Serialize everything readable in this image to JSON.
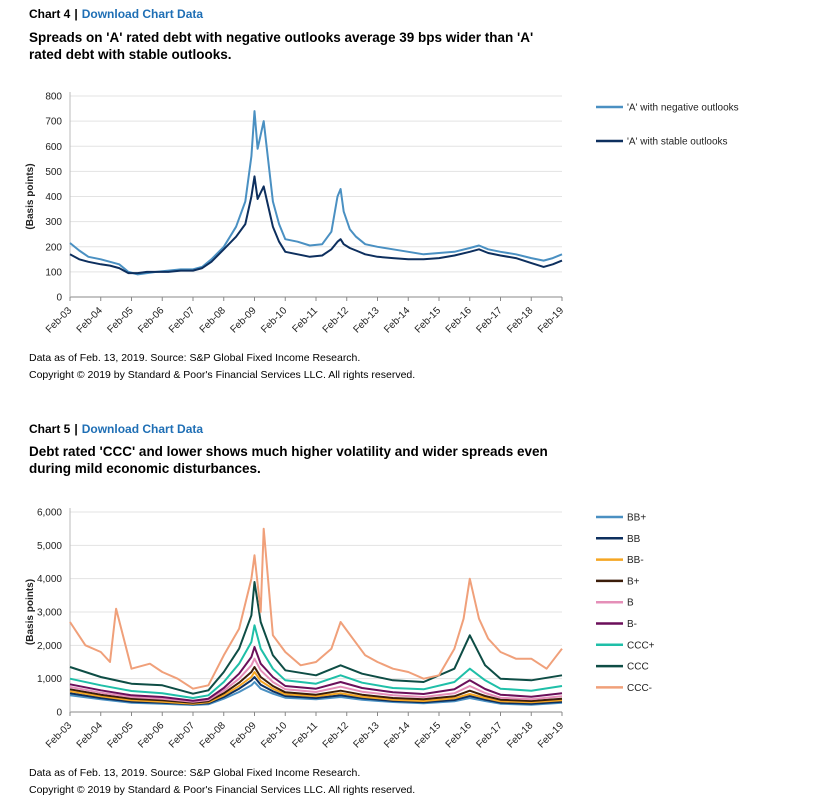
{
  "charts": [
    {
      "label": "Chart 4",
      "separator": "|",
      "download_label": "Download Chart Data",
      "title": "Spreads on 'A' rated debt with negative outlooks average 39 bps wider than 'A' rated debt with stable outlooks.",
      "note": "Data as of Feb. 13, 2019. Source: S&P Global Fixed Income Research.",
      "copyright": "Copyright © 2019 by Standard & Poor's Financial Services LLC. All rights reserved."
    },
    {
      "label": "Chart 5",
      "separator": "|",
      "download_label": "Download Chart Data",
      "title": "Debt rated 'CCC' and lower shows much higher volatility and wider spreads even during mild economic disturbances.",
      "note": "Data as of Feb. 13, 2019. Source: S&P Global Fixed Income Research.",
      "copyright": "Copyright © 2019 by Standard & Poor's Financial Services LLC. All rights reserved."
    }
  ],
  "chart_data": [
    {
      "type": "line",
      "ylabel": "(Basis points)",
      "ylim": [
        0,
        800
      ],
      "yticks": [
        0,
        100,
        200,
        300,
        400,
        500,
        600,
        700,
        800
      ],
      "ytick_labels": [
        "0",
        "100",
        "200",
        "300",
        "400",
        "500",
        "600",
        "700",
        "800"
      ],
      "xlim": [
        2003.0,
        2019.0
      ],
      "xtick_labels": [
        "Feb-03",
        "Feb-04",
        "Feb-05",
        "Feb-06",
        "Feb-07",
        "Feb-08",
        "Feb-09",
        "Feb-10",
        "Feb-11",
        "Feb-12",
        "Feb-13",
        "Feb-14",
        "Feb-15",
        "Feb-16",
        "Feb-17",
        "Feb-18",
        "Feb-19"
      ],
      "grid": true,
      "legend_position": "right",
      "series": [
        {
          "name": "'A' with negative outlooks",
          "color": "#4a90c2",
          "x": [
            2003.0,
            2003.3,
            2003.6,
            2004.0,
            2004.3,
            2004.6,
            2004.9,
            2005.2,
            2005.5,
            2005.8,
            2006.2,
            2006.6,
            2007.0,
            2007.3,
            2007.6,
            2008.0,
            2008.4,
            2008.7,
            2008.9,
            2009.0,
            2009.1,
            2009.3,
            2009.45,
            2009.6,
            2009.8,
            2010.0,
            2010.4,
            2010.8,
            2011.2,
            2011.5,
            2011.7,
            2011.8,
            2011.9,
            2012.1,
            2012.3,
            2012.6,
            2013.0,
            2013.5,
            2014.0,
            2014.5,
            2015.0,
            2015.5,
            2016.0,
            2016.3,
            2016.6,
            2017.0,
            2017.5,
            2018.0,
            2018.4,
            2018.7,
            2019.0
          ],
          "y": [
            215,
            185,
            160,
            150,
            140,
            130,
            100,
            90,
            95,
            100,
            105,
            110,
            110,
            120,
            150,
            200,
            280,
            380,
            560,
            740,
            590,
            700,
            540,
            380,
            290,
            230,
            220,
            205,
            210,
            260,
            400,
            430,
            340,
            270,
            240,
            210,
            200,
            190,
            180,
            170,
            175,
            180,
            195,
            205,
            190,
            180,
            170,
            155,
            145,
            155,
            170
          ]
        },
        {
          "name": "'A' with stable outlooks",
          "color": "#0d2f5e",
          "x": [
            2003.0,
            2003.3,
            2003.6,
            2004.0,
            2004.3,
            2004.6,
            2004.9,
            2005.2,
            2005.5,
            2005.8,
            2006.2,
            2006.6,
            2007.0,
            2007.3,
            2007.6,
            2008.0,
            2008.4,
            2008.7,
            2008.9,
            2009.0,
            2009.1,
            2009.3,
            2009.45,
            2009.6,
            2009.8,
            2010.0,
            2010.4,
            2010.8,
            2011.2,
            2011.5,
            2011.7,
            2011.8,
            2011.9,
            2012.1,
            2012.3,
            2012.6,
            2013.0,
            2013.5,
            2014.0,
            2014.5,
            2015.0,
            2015.5,
            2016.0,
            2016.3,
            2016.6,
            2017.0,
            2017.5,
            2018.0,
            2018.4,
            2018.7,
            2019.0
          ],
          "y": [
            170,
            150,
            140,
            130,
            125,
            115,
            95,
            95,
            100,
            100,
            100,
            105,
            105,
            115,
            140,
            190,
            240,
            290,
            400,
            480,
            390,
            440,
            360,
            280,
            220,
            180,
            170,
            160,
            165,
            190,
            220,
            230,
            210,
            195,
            185,
            170,
            160,
            155,
            150,
            150,
            155,
            165,
            180,
            190,
            175,
            165,
            155,
            135,
            120,
            130,
            145
          ]
        }
      ]
    },
    {
      "type": "line",
      "ylabel": "(Basis points)",
      "ylim": [
        0,
        6000
      ],
      "yticks": [
        0,
        1000,
        2000,
        3000,
        4000,
        5000,
        6000
      ],
      "ytick_labels": [
        "0",
        "1,000",
        "2,000",
        "3,000",
        "4,000",
        "5,000",
        "6,000"
      ],
      "xlim": [
        2003.0,
        2019.0
      ],
      "xtick_labels": [
        "Feb-03",
        "Feb-04",
        "Feb-05",
        "Feb-06",
        "Feb-07",
        "Feb-08",
        "Feb-09",
        "Feb-10",
        "Feb-11",
        "Feb-12",
        "Feb-13",
        "Feb-14",
        "Feb-15",
        "Feb-16",
        "Feb-17",
        "Feb-18",
        "Feb-19"
      ],
      "grid": true,
      "legend_position": "right",
      "series": [
        {
          "name": "BB+",
          "color": "#4a90c2",
          "x": [
            2003.0,
            2004.0,
            2005.0,
            2006.0,
            2007.0,
            2007.5,
            2008.0,
            2008.5,
            2008.9,
            2009.0,
            2009.2,
            2009.6,
            2010.0,
            2011.0,
            2011.8,
            2012.5,
            2013.5,
            2014.5,
            2015.5,
            2016.0,
            2016.5,
            2017.0,
            2018.0,
            2019.0
          ],
          "y": [
            500,
            380,
            280,
            250,
            210,
            230,
            400,
            600,
            800,
            900,
            700,
            550,
            430,
            380,
            450,
            370,
            300,
            260,
            320,
            420,
            330,
            250,
            220,
            280
          ]
        },
        {
          "name": "BB",
          "color": "#0d2f5e",
          "x": [
            2003.0,
            2004.0,
            2005.0,
            2006.0,
            2007.0,
            2007.5,
            2008.0,
            2008.5,
            2008.9,
            2009.0,
            2009.2,
            2009.6,
            2010.0,
            2011.0,
            2011.8,
            2012.5,
            2013.5,
            2014.5,
            2015.5,
            2016.0,
            2016.5,
            2017.0,
            2018.0,
            2019.0
          ],
          "y": [
            560,
            420,
            310,
            280,
            230,
            260,
            450,
            700,
            950,
            1050,
            820,
            620,
            480,
            420,
            500,
            410,
            330,
            290,
            360,
            480,
            370,
            280,
            250,
            310
          ]
        },
        {
          "name": "BB-",
          "color": "#f5a623",
          "x": [
            2003.0,
            2004.0,
            2005.0,
            2006.0,
            2007.0,
            2007.5,
            2008.0,
            2008.5,
            2008.9,
            2009.0,
            2009.2,
            2009.6,
            2010.0,
            2011.0,
            2011.8,
            2012.5,
            2013.5,
            2014.5,
            2015.5,
            2016.0,
            2016.5,
            2017.0,
            2018.0,
            2019.0
          ],
          "y": [
            620,
            470,
            350,
            310,
            250,
            290,
            500,
            780,
            1050,
            1200,
            930,
            700,
            530,
            470,
            560,
            460,
            370,
            330,
            410,
            540,
            420,
            320,
            290,
            350
          ]
        },
        {
          "name": "B+",
          "color": "#3b1d0a",
          "x": [
            2003.0,
            2004.0,
            2005.0,
            2006.0,
            2007.0,
            2007.5,
            2008.0,
            2008.5,
            2008.9,
            2009.0,
            2009.2,
            2009.6,
            2010.0,
            2011.0,
            2011.8,
            2012.5,
            2013.5,
            2014.5,
            2015.5,
            2016.0,
            2016.5,
            2017.0,
            2018.0,
            2019.0
          ],
          "y": [
            680,
            520,
            400,
            350,
            280,
            320,
            560,
            880,
            1200,
            1350,
            1050,
            780,
            590,
            520,
            640,
            520,
            420,
            380,
            470,
            640,
            480,
            370,
            330,
            400
          ]
        },
        {
          "name": "B",
          "color": "#e58fb8",
          "x": [
            2003.0,
            2004.0,
            2005.0,
            2006.0,
            2007.0,
            2007.5,
            2008.0,
            2008.5,
            2008.9,
            2009.0,
            2009.2,
            2009.6,
            2010.0,
            2011.0,
            2011.8,
            2012.5,
            2013.5,
            2014.5,
            2015.5,
            2016.0,
            2016.5,
            2017.0,
            2018.0,
            2019.0
          ],
          "y": [
            750,
            580,
            450,
            400,
            310,
            360,
            640,
            1000,
            1400,
            1600,
            1250,
            900,
            680,
            600,
            760,
            610,
            500,
            450,
            560,
            780,
            570,
            430,
            380,
            470
          ]
        },
        {
          "name": "B-",
          "color": "#6b0f5a",
          "x": [
            2003.0,
            2004.0,
            2005.0,
            2006.0,
            2007.0,
            2007.5,
            2008.0,
            2008.5,
            2008.9,
            2009.0,
            2009.2,
            2009.6,
            2010.0,
            2011.0,
            2011.8,
            2012.5,
            2013.5,
            2014.5,
            2015.5,
            2016.0,
            2016.5,
            2017.0,
            2018.0,
            2019.0
          ],
          "y": [
            830,
            650,
            500,
            450,
            340,
            400,
            720,
            1150,
            1650,
            1950,
            1450,
            1050,
            780,
            700,
            900,
            720,
            590,
            540,
            680,
            950,
            690,
            520,
            460,
            560
          ]
        },
        {
          "name": "CCC+",
          "color": "#1fbfa8",
          "x": [
            2003.0,
            2004.0,
            2005.0,
            2006.0,
            2007.0,
            2007.5,
            2008.0,
            2008.5,
            2008.9,
            2009.0,
            2009.2,
            2009.6,
            2010.0,
            2011.0,
            2011.8,
            2012.5,
            2013.5,
            2014.5,
            2015.5,
            2016.0,
            2016.5,
            2017.0,
            2018.0,
            2019.0
          ],
          "y": [
            1000,
            800,
            630,
            560,
            420,
            500,
            900,
            1450,
            2100,
            2600,
            1900,
            1300,
            950,
            850,
            1100,
            880,
            720,
            680,
            900,
            1300,
            950,
            700,
            640,
            780
          ]
        },
        {
          "name": "CCC",
          "color": "#0e4d45",
          "x": [
            2003.0,
            2004.0,
            2005.0,
            2006.0,
            2007.0,
            2007.5,
            2008.0,
            2008.5,
            2008.9,
            2009.0,
            2009.2,
            2009.6,
            2010.0,
            2011.0,
            2011.8,
            2012.5,
            2013.5,
            2014.5,
            2015.5,
            2016.0,
            2016.5,
            2017.0,
            2018.0,
            2019.0
          ],
          "y": [
            1350,
            1050,
            850,
            800,
            550,
            650,
            1200,
            1900,
            2900,
            3900,
            2700,
            1700,
            1250,
            1100,
            1400,
            1150,
            950,
            900,
            1300,
            2300,
            1400,
            1000,
            950,
            1100
          ]
        },
        {
          "name": "CCC-",
          "color": "#f0a07a",
          "x": [
            2003.0,
            2003.5,
            2004.0,
            2004.3,
            2004.5,
            2005.0,
            2005.6,
            2006.0,
            2006.5,
            2007.0,
            2007.5,
            2008.0,
            2008.5,
            2008.9,
            2009.0,
            2009.2,
            2009.3,
            2009.6,
            2010.0,
            2010.5,
            2011.0,
            2011.5,
            2011.8,
            2012.2,
            2012.6,
            2013.0,
            2013.5,
            2014.0,
            2014.5,
            2015.0,
            2015.5,
            2015.8,
            2016.0,
            2016.3,
            2016.6,
            2017.0,
            2017.5,
            2018.0,
            2018.5,
            2019.0
          ],
          "y": [
            2700,
            2000,
            1800,
            1500,
            3100,
            1300,
            1450,
            1200,
            1000,
            700,
            800,
            1700,
            2500,
            4000,
            4700,
            3000,
            5500,
            2300,
            1800,
            1400,
            1500,
            1900,
            2700,
            2200,
            1700,
            1500,
            1300,
            1200,
            1000,
            1100,
            1900,
            2800,
            4000,
            2800,
            2200,
            1800,
            1600,
            1600,
            1300,
            1900
          ]
        }
      ]
    }
  ]
}
